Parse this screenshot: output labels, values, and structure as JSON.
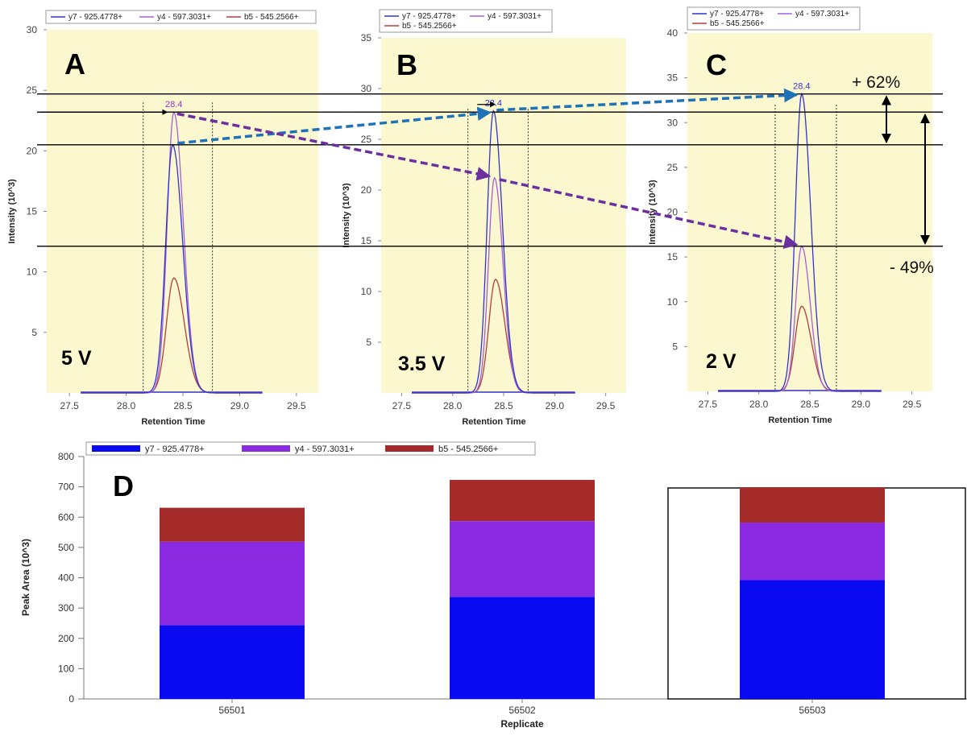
{
  "chart_data": [
    {
      "panel": "A",
      "type": "line",
      "voltage": "5 V",
      "xlabel": "Retention Time",
      "ylabel": "Intensity (10^3)",
      "xlim": [
        27.3,
        29.7
      ],
      "ylim": [
        0,
        30
      ],
      "x_ticks": [
        "27.5",
        "28.0",
        "28.5",
        "29.0",
        "29.5"
      ],
      "y_ticks": [
        "5",
        "10",
        "15",
        "20",
        "25",
        "30"
      ],
      "integration_bounds": [
        28.15,
        28.76
      ],
      "peak_label": "28.4",
      "peak_label_color": "#9933cc",
      "series": [
        {
          "name": "y7 - 925.4778+",
          "color": "#3333cc",
          "apex_rt": 28.41,
          "apex_intensity": 20.5
        },
        {
          "name": "y4 - 597.3031+",
          "color": "#a060d8",
          "apex_rt": 28.42,
          "apex_intensity": 23.2
        },
        {
          "name": "b5 - 545.2566+",
          "color": "#b04040",
          "apex_rt": 28.42,
          "apex_intensity": 9.5
        }
      ]
    },
    {
      "panel": "B",
      "type": "line",
      "voltage": "3.5 V",
      "xlabel": "Retention Time",
      "ylabel": "Intensity (10^3)",
      "xlim": [
        27.3,
        29.7
      ],
      "ylim": [
        0,
        35
      ],
      "x_ticks": [
        "27.5",
        "28.0",
        "28.5",
        "29.0",
        "29.5"
      ],
      "y_ticks": [
        "5",
        "10",
        "15",
        "20",
        "25",
        "30",
        "35"
      ],
      "integration_bounds": [
        28.15,
        28.74
      ],
      "peak_label": "28.4",
      "peak_label_color": "#3333cc",
      "series": [
        {
          "name": "y7 - 925.4778+",
          "color": "#3333cc",
          "apex_rt": 28.4,
          "apex_intensity": 27.8
        },
        {
          "name": "y4 - 597.3031+",
          "color": "#a060d8",
          "apex_rt": 28.41,
          "apex_intensity": 21.2
        },
        {
          "name": "b5 - 545.2566+",
          "color": "#b04040",
          "apex_rt": 28.42,
          "apex_intensity": 11.2
        }
      ]
    },
    {
      "panel": "C",
      "type": "line",
      "voltage": "2 V",
      "xlabel": "Retention Time",
      "ylabel": "Intensity (10^3)",
      "xlim": [
        27.3,
        29.7
      ],
      "ylim": [
        0,
        40
      ],
      "x_ticks": [
        "27.5",
        "28.0",
        "28.5",
        "29.0",
        "29.5"
      ],
      "y_ticks": [
        "5",
        "10",
        "15",
        "20",
        "25",
        "30",
        "35",
        "40"
      ],
      "integration_bounds": [
        28.16,
        28.76
      ],
      "peak_label": "28.4",
      "peak_label_color": "#3333cc",
      "series": [
        {
          "name": "y7 - 925.4778+",
          "color": "#3333cc",
          "apex_rt": 28.42,
          "apex_intensity": 33.2
        },
        {
          "name": "y4 - 597.3031+",
          "color": "#a060d8",
          "apex_rt": 28.42,
          "apex_intensity": 16.2
        },
        {
          "name": "b5 - 545.2566+",
          "color": "#b04040",
          "apex_rt": 28.42,
          "apex_intensity": 9.5
        }
      ]
    },
    {
      "panel": "D",
      "type": "bar",
      "stacked": true,
      "xlabel": "Replicate",
      "ylabel": "Peak Area (10^3)",
      "ylim": [
        0,
        800
      ],
      "y_ticks": [
        "0",
        "100",
        "200",
        "300",
        "400",
        "500",
        "600",
        "700",
        "800"
      ],
      "categories": [
        "56501",
        "56502",
        "56503"
      ],
      "selected_category": "56503",
      "series": [
        {
          "name": "y7 - 925.4778+",
          "color": "#0a0af0",
          "values": [
            243,
            337,
            392
          ]
        },
        {
          "name": "y4 - 597.3031+",
          "color": "#8a2be2",
          "values": [
            276,
            250,
            190
          ]
        },
        {
          "name": "b5 - 545.2566+",
          "color": "#a52a2a",
          "values": [
            112,
            136,
            117
          ]
        }
      ]
    }
  ],
  "annotations": {
    "increase_label": "+ 62%",
    "decrease_label": "- 49%",
    "blue_arrow_color": "#1e72b8",
    "purple_arrow_color": "#6b2fa0"
  }
}
